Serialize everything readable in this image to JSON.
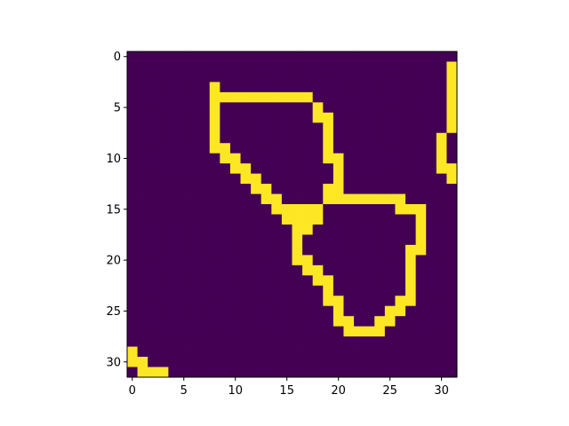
{
  "chart_data": {
    "type": "heatmap",
    "title": "",
    "xlabel": "",
    "ylabel": "",
    "colormap": "viridis",
    "colors": {
      "low": "#440154",
      "high": "#fde725"
    },
    "xlim": [
      -0.5,
      31.5
    ],
    "ylim": [
      31.5,
      -0.5
    ],
    "x_ticks": [
      0,
      5,
      10,
      15,
      20,
      25,
      30
    ],
    "y_ticks": [
      0,
      5,
      10,
      15,
      20,
      25,
      30
    ],
    "x_tick_labels": [
      "0",
      "5",
      "10",
      "15",
      "20",
      "25",
      "30"
    ],
    "y_tick_labels": [
      "0",
      "5",
      "10",
      "15",
      "20",
      "25",
      "30"
    ],
    "grid": false,
    "rows": [
      "00000000000000000000000000000000",
      "00000000000000000000000000000001",
      "00000000000000000000000000000001",
      "00000000100000000000000000000001",
      "00000000111111111100000000000001",
      "00000000100000000010000000000001",
      "00000000100000000011000000000001",
      "00000000100000000001000000000001",
      "00000000100000000001000000000010",
      "00000000110000000001000000000010",
      "00000000011000000001100000000010",
      "00000000001100000000100000000011",
      "00000000000110000000100000000001",
      "00000000000011000001100000000000",
      "00000000000001100001111111100000",
      "00000000000000111110000000111000",
      "00000000000000011110000000001000",
      "00000000000000001100000000001000",
      "00000000000000001000000000001000",
      "00000000000000001000000000011000",
      "00000000000000001100000000010000",
      "00000000000000000110000000010000",
      "00000000000000000011000000010000",
      "00000000000000000001000000010000",
      "00000000000000000001100000110000",
      "00000000000000000000100001100000",
      "00000000000000000000110011000000",
      "00000000000000000000011110000000",
      "00000000000000000000000000000000",
      "10000000000000000000000000000000",
      "11000000000000000000000000000000",
      "01110000000000000000000000000000"
    ]
  }
}
